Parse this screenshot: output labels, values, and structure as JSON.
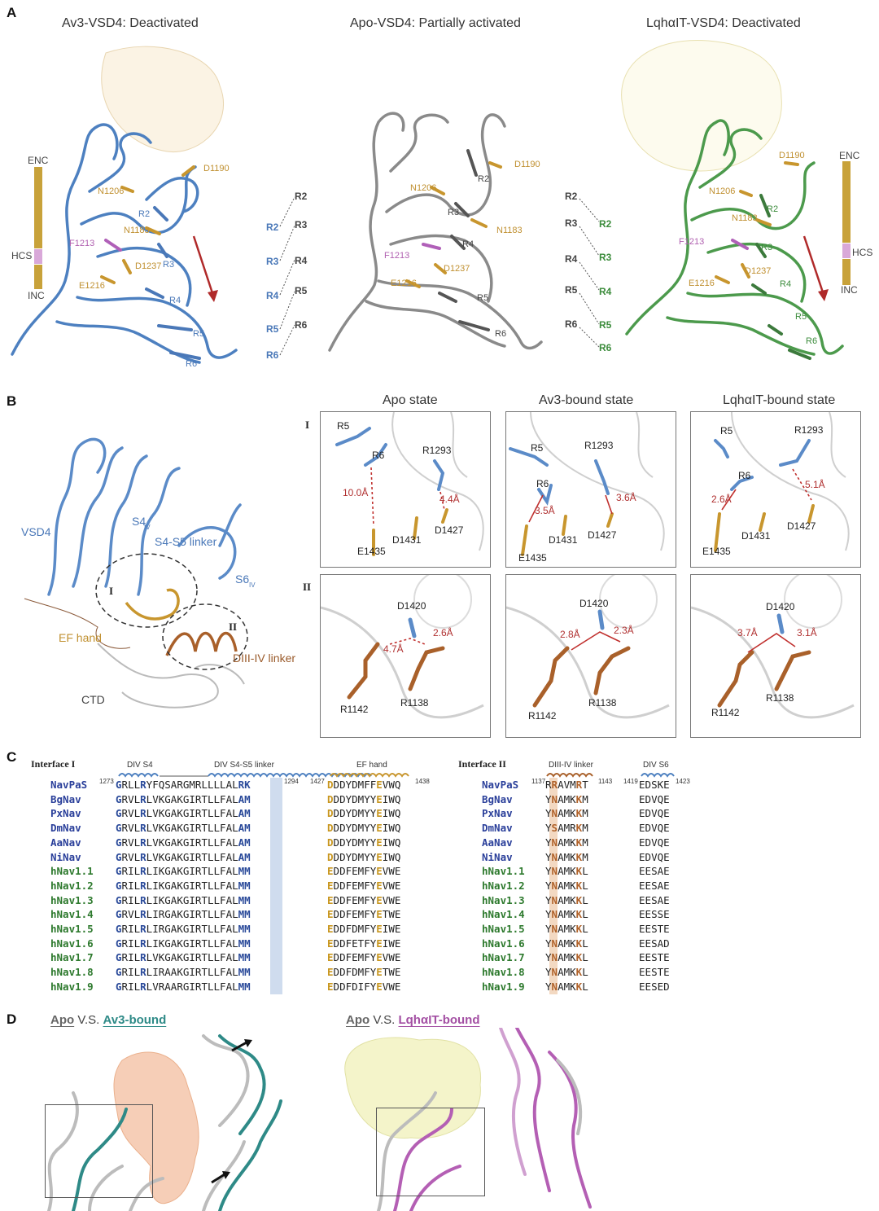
{
  "panel_a": {
    "label": "A",
    "titles": [
      "Av3-VSD4: Deactivated",
      "Apo-VSD4: Partially activated",
      "LqhαIT-VSD4: Deactivated"
    ],
    "left": {
      "residues": [
        "D1190",
        "N1206",
        "N1183",
        "F1213",
        "D1237",
        "E1216",
        "R2",
        "R3",
        "R4",
        "R5",
        "R6"
      ],
      "bar": [
        "ENC",
        "HCS",
        "INC"
      ]
    },
    "middle": {
      "residues": [
        "D1190",
        "N1206",
        "N1183",
        "F1213",
        "D1237",
        "E1216",
        "R2",
        "R3",
        "R4",
        "R5",
        "R6"
      ]
    },
    "right": {
      "residues": [
        "D1190",
        "N1206",
        "N1183",
        "F1213",
        "D1237",
        "E1216",
        "R2",
        "R3",
        "R4",
        "R5",
        "R6"
      ],
      "bar": [
        "ENC",
        "HCS",
        "INC"
      ]
    },
    "map_left_from": [
      "R2",
      "R3",
      "R4",
      "R5",
      "R6"
    ],
    "map_left_to": [
      "R2",
      "R3",
      "R4",
      "R5",
      "R6"
    ],
    "map_right_from": [
      "R2",
      "R3",
      "R4",
      "R5",
      "R6"
    ],
    "map_right_to": [
      "R2",
      "R3",
      "R4",
      "R5",
      "R6"
    ]
  },
  "panel_b": {
    "label": "B",
    "overview": {
      "labels": [
        "VSD4",
        "S4",
        "IV",
        "S4-S5 linker",
        "S6",
        "IV",
        "EF hand",
        "DIII-IV linker",
        "CTD",
        "I",
        "II"
      ]
    },
    "columns": [
      "Apo state",
      "Av3-bound state",
      "LqhαIT-bound state"
    ],
    "rows": [
      "I",
      "II"
    ],
    "row1": [
      {
        "residues": [
          "R5",
          "R6",
          "R1293",
          "E1435",
          "D1431",
          "D1427"
        ],
        "distances": [
          "10.0Å",
          "4.4Å"
        ]
      },
      {
        "residues": [
          "R5",
          "R6",
          "R1293",
          "E1435",
          "D1431",
          "D1427"
        ],
        "distances": [
          "3.5Å",
          "3.6Å"
        ]
      },
      {
        "residues": [
          "R5",
          "R6",
          "R1293",
          "E1435",
          "D1431",
          "D1427"
        ],
        "distances": [
          "2.6Å",
          "5.1Å"
        ]
      }
    ],
    "row2": [
      {
        "residues": [
          "D1420",
          "R1142",
          "R1138"
        ],
        "distances": [
          "4.7Å",
          "2.6Å"
        ]
      },
      {
        "residues": [
          "D1420",
          "R1142",
          "R1138"
        ],
        "distances": [
          "2.8Å",
          "2.3Å"
        ]
      },
      {
        "residues": [
          "D1420",
          "R1142",
          "R1138"
        ],
        "distances": [
          "3.7Å",
          "3.1Å"
        ]
      }
    ]
  },
  "panel_c": {
    "label": "C",
    "interface1": {
      "title": "Interface I",
      "headers": [
        "DIV S4",
        "DIV S4-S5 linker",
        "EF hand"
      ],
      "start1": "1273",
      "end1": "1294",
      "start2": "1427",
      "end2": "1438"
    },
    "interface2": {
      "title": "Interface II",
      "headers": [
        "DIII-IV linker",
        "DIV S6"
      ],
      "start1": "1137",
      "end1": "1143",
      "start2": "1419",
      "end2": "1423"
    },
    "rows": [
      {
        "name": "NavPaS",
        "s1": "GRLLRYFQSARGMRLLLLALRK",
        "s2": "DDDYDMFFEVWQ",
        "s3": "RRAVMRT",
        "s4": "EDSKE",
        "group": "insect"
      },
      {
        "name": "BgNav",
        "s1": "GRVLRLVKGAKGIRTLLFALAM",
        "s2": "DDDYDMYYEIWQ",
        "s3": "YNAMKKM",
        "s4": "EDVQE",
        "group": "insect"
      },
      {
        "name": "PxNav",
        "s1": "GRVLRLVKGAKGIRTLLFALAM",
        "s2": "DDDYDMYYEIWQ",
        "s3": "YNAMKKM",
        "s4": "EDVQE",
        "group": "insect"
      },
      {
        "name": "DmNav",
        "s1": "GRVLRLVKGAKGIRTLLFALAM",
        "s2": "DDDYDMYYEIWQ",
        "s3": "YSAMRKM",
        "s4": "EDVQE",
        "group": "insect"
      },
      {
        "name": "AaNav",
        "s1": "GRVLRLVKGAKGIRTLLFALAM",
        "s2": "DDDYDMYYEIWQ",
        "s3": "YNAMKKM",
        "s4": "EDVQE",
        "group": "insect"
      },
      {
        "name": "NiNav",
        "s1": "GRVLRLVKGAKGIRTLLFALAM",
        "s2": "DDDYDMYYEIWQ",
        "s3": "YNAMKKM",
        "s4": "EDVQE",
        "group": "insect"
      },
      {
        "name": "hNav1.1",
        "s1": "GRILRLIKGAKGIRTLLFALMM",
        "s2": "EDDFEMFYEVWE",
        "s3": "YNAMKKL",
        "s4": "EESAE",
        "group": "human"
      },
      {
        "name": "hNav1.2",
        "s1": "GRILRLIKGAKGIRTLLFALMM",
        "s2": "EDDFEMFYEVWE",
        "s3": "YNAMKKL",
        "s4": "EESAE",
        "group": "human"
      },
      {
        "name": "hNav1.3",
        "s1": "GRILRLIKGAKGIRTLLFALMM",
        "s2": "EDDFEMFYEVWE",
        "s3": "YNAMKKL",
        "s4": "EESAE",
        "group": "human"
      },
      {
        "name": "hNav1.4",
        "s1": "GRVLRLIRGAKGIRTLLFALMM",
        "s2": "EDDFEMFYETWE",
        "s3": "YNAMKKL",
        "s4": "EESSE",
        "group": "human"
      },
      {
        "name": "hNav1.5",
        "s1": "GRILRLIRGAKGIRTLLFALMM",
        "s2": "EDDFDMFYEIWE",
        "s3": "YNAMKKL",
        "s4": "EESTE",
        "group": "human"
      },
      {
        "name": "hNav1.6",
        "s1": "GRILRLIKGAKGIRTLLFALMM",
        "s2": "EDDFETFYEIWE",
        "s3": "YNAMKKL",
        "s4": "EESAD",
        "group": "human"
      },
      {
        "name": "hNav1.7",
        "s1": "GRILRLVKGAKGIRTLLFALMM",
        "s2": "EDDFEMFYEVWE",
        "s3": "YNAMKKL",
        "s4": "EESTE",
        "group": "human"
      },
      {
        "name": "hNav1.8",
        "s1": "GRILRLIRAAKGIRTLLFALMM",
        "s2": "EDDFDMFYETWE",
        "s3": "YNAMKKL",
        "s4": "EESTE",
        "group": "human"
      },
      {
        "name": "hNav1.9",
        "s1": "GRILRLVRAARGIRTLLFALMM",
        "s2": "EDDFDIFYEVWE",
        "s3": "YNAMKKL",
        "s4": "EESED",
        "group": "human"
      }
    ],
    "colors": {
      "insect": "#2a3f9a",
      "human": "#2e7a2e",
      "gold": "#c8961e",
      "blue": "#2a4a9a",
      "brown": "#b0622a"
    }
  },
  "panel_d": {
    "label": "D",
    "left_title": {
      "a": "Apo",
      "vs": " V.S. ",
      "b": "Av3-bound"
    },
    "right_title": {
      "a": "Apo",
      "vs": " V.S. ",
      "b": "LqhαIT-bound"
    }
  }
}
